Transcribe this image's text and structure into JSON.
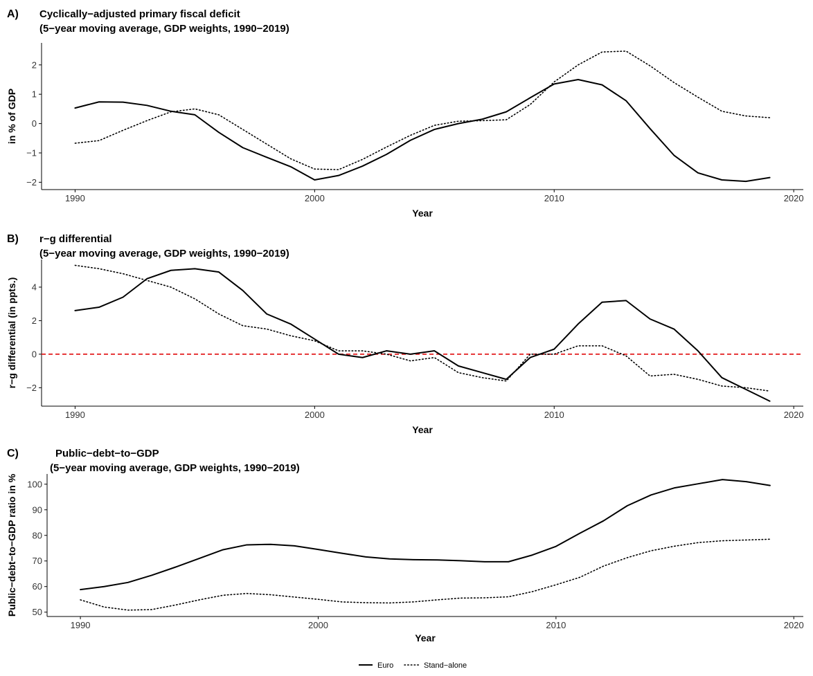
{
  "legend": {
    "items": [
      {
        "label": "Euro",
        "style": "solid"
      },
      {
        "label": "Stand−alone",
        "style": "dotted"
      }
    ],
    "position": "bottom"
  },
  "colors": {
    "series": "#000000",
    "reference_line": "#e31a1c",
    "axis": "#000000",
    "tick_text": "#333333"
  },
  "chart_data": [
    {
      "type": "line",
      "panel_label": "A)",
      "title": "Cyclically−adjusted primary fiscal deficit",
      "subtitle": "(5−year moving average, GDP weights, 1990−2019)",
      "xlabel": "Year",
      "ylabel": "in % of GDP",
      "xlim": [
        1988.6,
        2020.4
      ],
      "ylim": [
        -2.25,
        2.75
      ],
      "xticks": [
        1990,
        2000,
        2010,
        2020
      ],
      "yticks": [
        -2,
        -1,
        0,
        1,
        2
      ],
      "x": [
        1990,
        1991,
        1992,
        1993,
        1994,
        1995,
        1996,
        1997,
        1998,
        1999,
        2000,
        2001,
        2002,
        2003,
        2004,
        2005,
        2006,
        2007,
        2008,
        2009,
        2010,
        2011,
        2012,
        2013,
        2014,
        2015,
        2016,
        2017,
        2018,
        2019
      ],
      "grid": false,
      "reference_line": null,
      "series": [
        {
          "name": "Euro",
          "style": "solid",
          "values": [
            0.53,
            0.74,
            0.73,
            0.62,
            0.42,
            0.3,
            -0.3,
            -0.82,
            -1.15,
            -1.47,
            -1.92,
            -1.77,
            -1.45,
            -1.05,
            -0.57,
            -0.2,
            0.0,
            0.15,
            0.4,
            0.88,
            1.35,
            1.5,
            1.32,
            0.78,
            -0.17,
            -1.08,
            -1.68,
            -1.92,
            -1.97,
            -1.84
          ]
        },
        {
          "name": "Stand−alone",
          "style": "dotted",
          "values": [
            -0.67,
            -0.58,
            -0.23,
            0.1,
            0.4,
            0.5,
            0.3,
            -0.2,
            -0.7,
            -1.2,
            -1.55,
            -1.57,
            -1.22,
            -0.8,
            -0.4,
            -0.06,
            0.08,
            0.1,
            0.13,
            0.65,
            1.42,
            2.0,
            2.44,
            2.47,
            1.97,
            1.4,
            0.9,
            0.42,
            0.26,
            0.2
          ]
        }
      ]
    },
    {
      "type": "line",
      "panel_label": "B)",
      "title": "r−g differential",
      "subtitle": "(5−year moving average, GDP weights, 1990−2019)",
      "xlabel": "Year",
      "ylabel": "r−g differential (in ppts.)",
      "xlim": [
        1988.6,
        2020.4
      ],
      "ylim": [
        -3.1,
        5.65
      ],
      "xticks": [
        1990,
        2000,
        2010,
        2020
      ],
      "yticks": [
        -2,
        0,
        2,
        4
      ],
      "x": [
        1990,
        1991,
        1992,
        1993,
        1994,
        1995,
        1996,
        1997,
        1998,
        1999,
        2000,
        2001,
        2002,
        2003,
        2004,
        2005,
        2006,
        2007,
        2008,
        2009,
        2010,
        2011,
        2012,
        2013,
        2014,
        2015,
        2016,
        2017,
        2018,
        2019
      ],
      "grid": false,
      "reference_line": {
        "y": 0,
        "style": "dashed",
        "color": "#e31a1c"
      },
      "series": [
        {
          "name": "Euro",
          "style": "solid",
          "values": [
            2.6,
            2.8,
            3.4,
            4.5,
            5.0,
            5.1,
            4.9,
            3.8,
            2.4,
            1.8,
            0.9,
            0.0,
            -0.2,
            0.2,
            0.0,
            0.2,
            -0.7,
            -1.1,
            -1.5,
            -0.2,
            0.3,
            1.8,
            3.1,
            3.2,
            2.1,
            1.5,
            0.2,
            -1.4,
            -2.1,
            -2.8
          ]
        },
        {
          "name": "Stand−alone",
          "style": "dotted",
          "values": [
            5.3,
            5.1,
            4.8,
            4.4,
            4.0,
            3.3,
            2.4,
            1.7,
            1.5,
            1.1,
            0.8,
            0.2,
            0.2,
            0.0,
            -0.4,
            -0.2,
            -1.1,
            -1.4,
            -1.6,
            0.0,
            0.0,
            0.5,
            0.5,
            -0.1,
            -1.3,
            -1.2,
            -1.5,
            -1.9,
            -2.0,
            -2.2
          ]
        }
      ]
    },
    {
      "type": "line",
      "panel_label": "C)",
      "title": "Public−debt−to−GDP",
      "subtitle": "(5−year moving average, GDP weights, 1990−2019)",
      "xlabel": "Year",
      "ylabel": "Public−debt−to−GDP ratio in %",
      "xlim": [
        1988.6,
        2020.4
      ],
      "ylim": [
        48.3,
        104.0
      ],
      "xticks": [
        1990,
        2000,
        2010,
        2020
      ],
      "yticks": [
        50,
        60,
        70,
        80,
        90,
        100
      ],
      "x": [
        1990,
        1991,
        1992,
        1993,
        1994,
        1995,
        1996,
        1997,
        1998,
        1999,
        2000,
        2001,
        2002,
        2003,
        2004,
        2005,
        2006,
        2007,
        2008,
        2009,
        2010,
        2011,
        2012,
        2013,
        2014,
        2015,
        2016,
        2017,
        2018,
        2019
      ],
      "grid": false,
      "reference_line": null,
      "series": [
        {
          "name": "Euro",
          "style": "solid",
          "values": [
            58.8,
            60.0,
            61.6,
            64.4,
            67.6,
            71.0,
            74.4,
            76.3,
            76.5,
            75.9,
            74.5,
            73.0,
            71.6,
            70.8,
            70.5,
            70.4,
            70.1,
            69.7,
            69.7,
            72.3,
            75.7,
            80.8,
            85.7,
            91.6,
            95.8,
            98.6,
            100.2,
            101.8,
            101.0,
            99.5
          ]
        },
        {
          "name": "Stand−alone",
          "style": "dotted",
          "values": [
            54.8,
            52.0,
            50.8,
            51.0,
            52.8,
            54.8,
            56.6,
            57.3,
            56.8,
            55.9,
            55.0,
            54.0,
            53.7,
            53.6,
            54.0,
            54.8,
            55.5,
            55.6,
            56.0,
            58.0,
            60.7,
            63.6,
            68.0,
            71.3,
            74.0,
            75.8,
            77.2,
            77.9,
            78.2,
            78.5
          ]
        }
      ]
    }
  ]
}
